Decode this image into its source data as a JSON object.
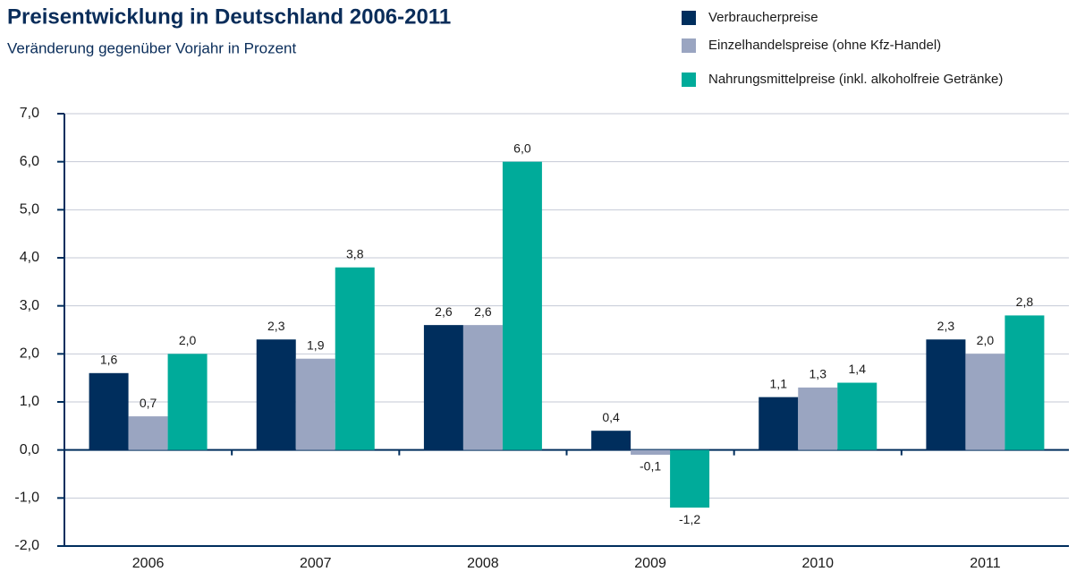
{
  "chart_data": {
    "type": "bar",
    "title": "Preisentwicklung in Deutschland 2006-2011",
    "subtitle": "Veränderung gegenüber Vorjahr in Prozent",
    "categories": [
      "2006",
      "2007",
      "2008",
      "2009",
      "2010",
      "2011"
    ],
    "series": [
      {
        "name": "Verbraucherpreise",
        "color": "#002e5d",
        "values": [
          1.6,
          2.3,
          2.6,
          0.4,
          1.1,
          2.3
        ],
        "value_labels": [
          "1,6",
          "2,3",
          "2,6",
          "0,4",
          "1,1",
          "2,3"
        ]
      },
      {
        "name": "Einzelhandelspreise (ohne Kfz-Handel)",
        "color": "#9aa5c1",
        "values": [
          0.7,
          1.9,
          2.6,
          -0.1,
          1.3,
          2.0
        ],
        "value_labels": [
          "0,7",
          "1,9",
          "2,6",
          "-0,1",
          "1,3",
          "2,0"
        ]
      },
      {
        "name": "Nahrungsmittelpreise (inkl. alkoholfreie Getränke)",
        "color": "#00ab9a",
        "values": [
          2.0,
          3.8,
          6.0,
          -1.2,
          1.4,
          2.8
        ],
        "value_labels": [
          "2,0",
          "3,8",
          "6,0",
          "-1,2",
          "1,4",
          "2,8"
        ]
      }
    ],
    "ylim": [
      -2,
      7
    ],
    "yticks": [
      {
        "value": -2,
        "label": "-2,0"
      },
      {
        "value": -1,
        "label": "-1,0"
      },
      {
        "value": 0,
        "label": "0,0"
      },
      {
        "value": 1,
        "label": "1,0"
      },
      {
        "value": 2,
        "label": "2,0"
      },
      {
        "value": 3,
        "label": "3,0"
      },
      {
        "value": 4,
        "label": "4,0"
      },
      {
        "value": 5,
        "label": "5,0"
      },
      {
        "value": 6,
        "label": "6,0"
      },
      {
        "value": 7,
        "label": "7,0"
      }
    ],
    "grid": true
  }
}
